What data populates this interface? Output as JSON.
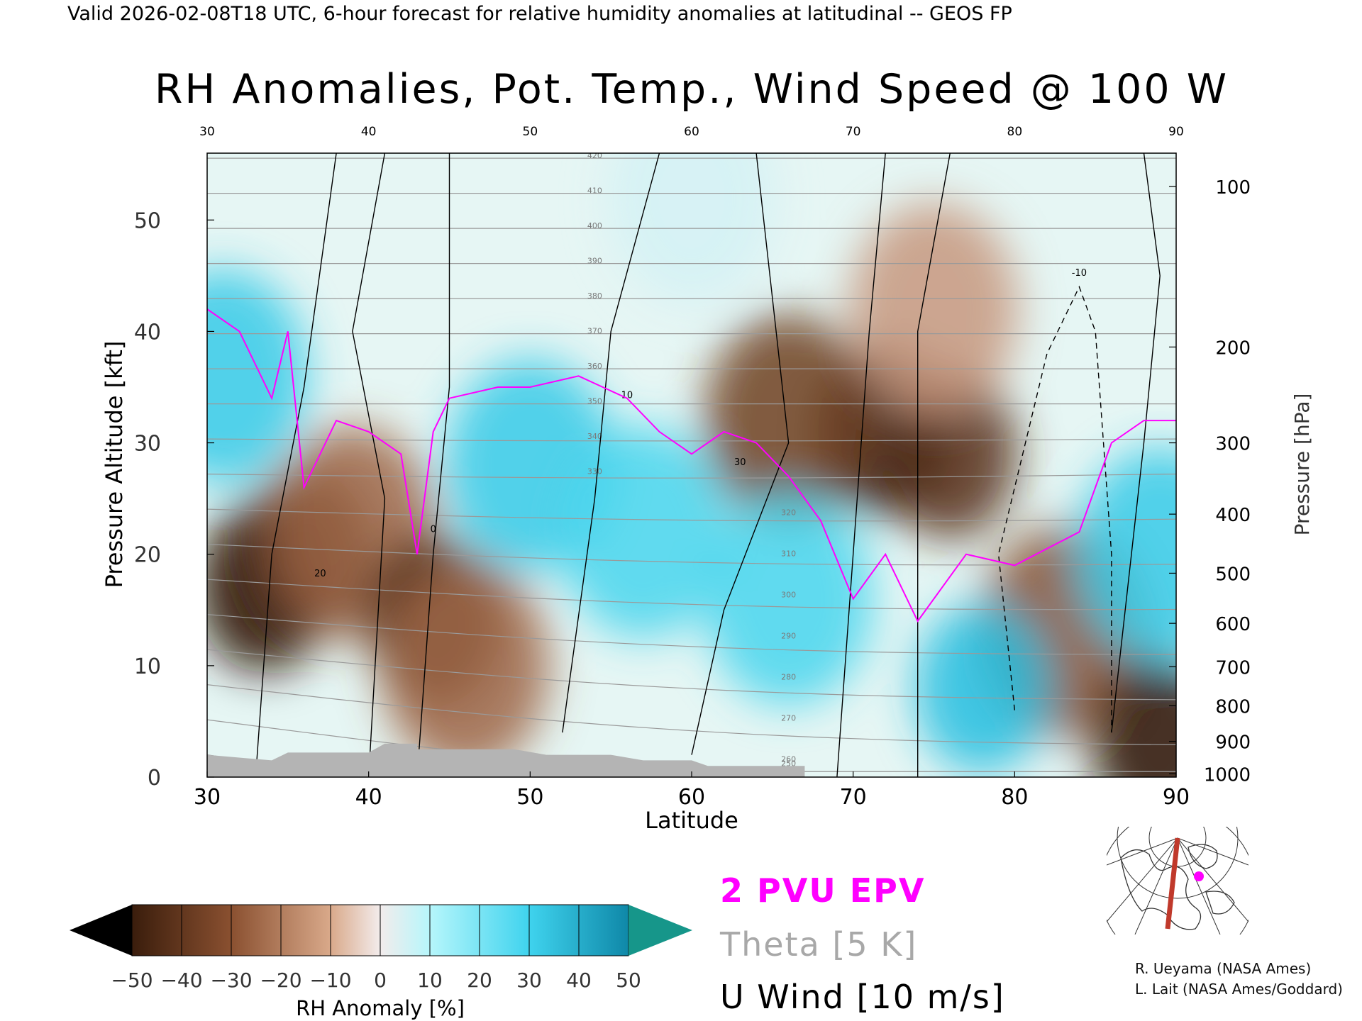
{
  "header": {
    "valid_line": "Valid 2026-02-08T18 UTC, 6-hour forecast for relative humidity anomalies at latitudinal -- GEOS FP",
    "title": "RH Anomalies, Pot. Temp., Wind Speed @ 100 W"
  },
  "legend": {
    "epv_label": "2 PVU EPV",
    "theta_label": "Theta [5 K]",
    "wind_label": "U Wind [10 m/s]"
  },
  "colorbar": {
    "title": "RH Anomaly [%]",
    "ticks": [
      "−50",
      "−40",
      "−30",
      "−20",
      "−10",
      "0",
      "10",
      "20",
      "30",
      "40",
      "50"
    ]
  },
  "credits": {
    "line1": "R. Ueyama (NASA Ames)",
    "line2": "L. Lait (NASA Ames/Goddard)"
  },
  "colors": {
    "epv": "#ff00ff",
    "theta": "#a0a0a0",
    "wind": "#000000",
    "ground": "#b4b4b4",
    "map_track": "#c0392b",
    "map_dot": "#ff00ff"
  },
  "chart_data": {
    "type": "heatmap",
    "xlabel": "Latitude",
    "ylabel": "Pressure Altitude [kft]",
    "ylabel_right": "Pressure [hPa]",
    "xlim": [
      30,
      90
    ],
    "ylim": [
      0,
      56
    ],
    "x_ticks": [
      "30",
      "40",
      "50",
      "60",
      "70",
      "80",
      "90"
    ],
    "y_ticks": [
      "0",
      "10",
      "20",
      "30",
      "40",
      "50"
    ],
    "pressure_ticks": [
      {
        "label": "100",
        "kft": 53.0
      },
      {
        "label": "200",
        "kft": 38.6
      },
      {
        "label": "300",
        "kft": 30.0
      },
      {
        "label": "400",
        "kft": 23.6
      },
      {
        "label": "500",
        "kft": 18.3
      },
      {
        "label": "600",
        "kft": 13.8
      },
      {
        "label": "700",
        "kft": 9.9
      },
      {
        "label": "800",
        "kft": 6.4
      },
      {
        "label": "900",
        "kft": 3.2
      },
      {
        "label": "1000",
        "kft": 0.3
      }
    ],
    "rh_anomaly_features": [
      {
        "lat": 33.5,
        "kft": 17,
        "value": -50
      },
      {
        "lat": 36,
        "kft": 20,
        "value": -45
      },
      {
        "lat": 39,
        "kft": 22,
        "value": -25
      },
      {
        "lat": 44,
        "kft": 14,
        "value": -45
      },
      {
        "lat": 46,
        "kft": 10,
        "value": -25
      },
      {
        "lat": 72,
        "kft": 31,
        "value": -50
      },
      {
        "lat": 76,
        "kft": 29,
        "value": -40
      },
      {
        "lat": 66,
        "kft": 32,
        "value": -35
      },
      {
        "lat": 83,
        "kft": 13,
        "value": -30
      },
      {
        "lat": 89,
        "kft": 3,
        "value": -50
      },
      {
        "lat": 50,
        "kft": 28,
        "value": 35
      },
      {
        "lat": 57,
        "kft": 22,
        "value": 30
      },
      {
        "lat": 66,
        "kft": 16,
        "value": 30
      },
      {
        "lat": 78,
        "kft": 8,
        "value": 40
      },
      {
        "lat": 31,
        "kft": 36,
        "value": 35
      },
      {
        "lat": 89,
        "kft": 20,
        "value": 35
      },
      {
        "lat": 60,
        "kft": 52,
        "value": 5
      },
      {
        "lat": 75,
        "kft": 42,
        "value": -15
      }
    ],
    "theta_levels": [
      "250",
      "260",
      "270",
      "280",
      "290",
      "300",
      "310",
      "320",
      "330",
      "340",
      "350",
      "360",
      "370",
      "380",
      "390",
      "400",
      "410",
      "420"
    ],
    "wind_levels": [
      "-10",
      "0",
      "10",
      "20",
      "30"
    ],
    "epv_level": "2 PVU"
  }
}
